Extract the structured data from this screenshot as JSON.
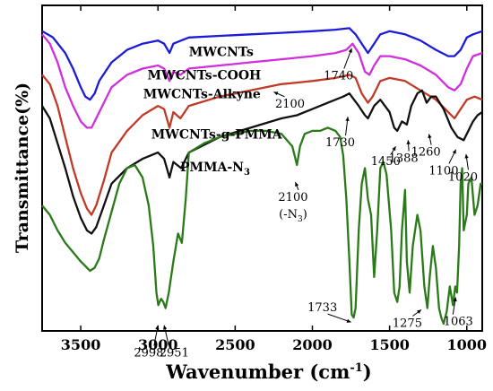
{
  "chart_data": {
    "type": "line",
    "xlabel": "Wavenumber (cm",
    "xlabel_sup": "-1",
    "xlabel_close": ")",
    "ylabel": "Transmittance(%)",
    "xlim": [
      3750,
      900
    ],
    "x_reversed": true,
    "xticks": [
      3500,
      3000,
      2500,
      2000,
      1500,
      1000
    ],
    "y_ticks_shown": false,
    "grid": false,
    "series": [
      {
        "name": "MWCNTs",
        "color": "#1c1cd8",
        "points": [
          [
            3750,
            0.94
          ],
          [
            3680,
            0.92
          ],
          [
            3600,
            0.87
          ],
          [
            3550,
            0.82
          ],
          [
            3500,
            0.76
          ],
          [
            3470,
            0.73
          ],
          [
            3440,
            0.72
          ],
          [
            3410,
            0.74
          ],
          [
            3380,
            0.78
          ],
          [
            3300,
            0.84
          ],
          [
            3200,
            0.88
          ],
          [
            3100,
            0.9
          ],
          [
            3000,
            0.91
          ],
          [
            2960,
            0.9
          ],
          [
            2925,
            0.87
          ],
          [
            2900,
            0.9
          ],
          [
            2850,
            0.91
          ],
          [
            2800,
            0.92
          ],
          [
            2600,
            0.925
          ],
          [
            2400,
            0.93
          ],
          [
            2200,
            0.935
          ],
          [
            2000,
            0.94
          ],
          [
            1850,
            0.945
          ],
          [
            1760,
            0.95
          ],
          [
            1720,
            0.93
          ],
          [
            1680,
            0.9
          ],
          [
            1640,
            0.87
          ],
          [
            1600,
            0.9
          ],
          [
            1560,
            0.93
          ],
          [
            1500,
            0.94
          ],
          [
            1400,
            0.93
          ],
          [
            1300,
            0.91
          ],
          [
            1200,
            0.88
          ],
          [
            1120,
            0.86
          ],
          [
            1080,
            0.86
          ],
          [
            1040,
            0.88
          ],
          [
            1000,
            0.92
          ],
          [
            960,
            0.93
          ],
          [
            900,
            0.94
          ]
        ]
      },
      {
        "name": "MWCNTs-COOH",
        "color": "#cf2fdc",
        "points": [
          [
            3750,
            0.93
          ],
          [
            3700,
            0.9
          ],
          [
            3650,
            0.84
          ],
          [
            3600,
            0.76
          ],
          [
            3550,
            0.7
          ],
          [
            3500,
            0.65
          ],
          [
            3460,
            0.63
          ],
          [
            3430,
            0.63
          ],
          [
            3400,
            0.66
          ],
          [
            3350,
            0.71
          ],
          [
            3300,
            0.76
          ],
          [
            3200,
            0.8
          ],
          [
            3100,
            0.82
          ],
          [
            3000,
            0.83
          ],
          [
            2960,
            0.82
          ],
          [
            2925,
            0.78
          ],
          [
            2900,
            0.81
          ],
          [
            2855,
            0.8
          ],
          [
            2800,
            0.82
          ],
          [
            2600,
            0.83
          ],
          [
            2400,
            0.84
          ],
          [
            2200,
            0.85
          ],
          [
            2000,
            0.86
          ],
          [
            1850,
            0.87
          ],
          [
            1780,
            0.88
          ],
          [
            1740,
            0.9
          ],
          [
            1700,
            0.87
          ],
          [
            1660,
            0.81
          ],
          [
            1630,
            0.8
          ],
          [
            1600,
            0.83
          ],
          [
            1560,
            0.86
          ],
          [
            1500,
            0.86
          ],
          [
            1400,
            0.85
          ],
          [
            1300,
            0.83
          ],
          [
            1200,
            0.8
          ],
          [
            1120,
            0.76
          ],
          [
            1080,
            0.75
          ],
          [
            1040,
            0.77
          ],
          [
            1000,
            0.82
          ],
          [
            960,
            0.86
          ],
          [
            900,
            0.87
          ]
        ]
      },
      {
        "name": "MWCNTs-Alkyne",
        "color": "#c03a28",
        "points": [
          [
            3750,
            0.8
          ],
          [
            3700,
            0.77
          ],
          [
            3650,
            0.7
          ],
          [
            3600,
            0.6
          ],
          [
            3550,
            0.5
          ],
          [
            3500,
            0.42
          ],
          [
            3460,
            0.37
          ],
          [
            3430,
            0.35
          ],
          [
            3400,
            0.38
          ],
          [
            3350,
            0.46
          ],
          [
            3300,
            0.55
          ],
          [
            3200,
            0.62
          ],
          [
            3100,
            0.67
          ],
          [
            3000,
            0.7
          ],
          [
            2960,
            0.69
          ],
          [
            2925,
            0.63
          ],
          [
            2900,
            0.68
          ],
          [
            2855,
            0.66
          ],
          [
            2800,
            0.7
          ],
          [
            2600,
            0.73
          ],
          [
            2400,
            0.75
          ],
          [
            2200,
            0.77
          ],
          [
            2100,
            0.775
          ],
          [
            2000,
            0.78
          ],
          [
            1850,
            0.79
          ],
          [
            1760,
            0.8
          ],
          [
            1720,
            0.79
          ],
          [
            1680,
            0.74
          ],
          [
            1640,
            0.71
          ],
          [
            1610,
            0.73
          ],
          [
            1560,
            0.78
          ],
          [
            1500,
            0.79
          ],
          [
            1400,
            0.78
          ],
          [
            1300,
            0.75
          ],
          [
            1200,
            0.72
          ],
          [
            1120,
            0.68
          ],
          [
            1080,
            0.66
          ],
          [
            1040,
            0.69
          ],
          [
            1000,
            0.72
          ],
          [
            950,
            0.73
          ],
          [
            900,
            0.72
          ]
        ]
      },
      {
        "name": "MWCNTs-g-PMMA",
        "color": "#111111",
        "points": [
          [
            3750,
            0.7
          ],
          [
            3700,
            0.66
          ],
          [
            3650,
            0.58
          ],
          [
            3600,
            0.5
          ],
          [
            3550,
            0.41
          ],
          [
            3500,
            0.34
          ],
          [
            3460,
            0.3
          ],
          [
            3430,
            0.29
          ],
          [
            3400,
            0.31
          ],
          [
            3350,
            0.38
          ],
          [
            3300,
            0.45
          ],
          [
            3200,
            0.5
          ],
          [
            3100,
            0.53
          ],
          [
            3000,
            0.55
          ],
          [
            2960,
            0.53
          ],
          [
            2925,
            0.47
          ],
          [
            2900,
            0.52
          ],
          [
            2850,
            0.5
          ],
          [
            2800,
            0.55
          ],
          [
            2600,
            0.6
          ],
          [
            2400,
            0.63
          ],
          [
            2200,
            0.66
          ],
          [
            2100,
            0.67
          ],
          [
            2000,
            0.69
          ],
          [
            1900,
            0.71
          ],
          [
            1800,
            0.73
          ],
          [
            1760,
            0.74
          ],
          [
            1730,
            0.72
          ],
          [
            1700,
            0.7
          ],
          [
            1660,
            0.67
          ],
          [
            1640,
            0.66
          ],
          [
            1600,
            0.7
          ],
          [
            1560,
            0.72
          ],
          [
            1500,
            0.68
          ],
          [
            1470,
            0.63
          ],
          [
            1450,
            0.62
          ],
          [
            1420,
            0.65
          ],
          [
            1388,
            0.64
          ],
          [
            1360,
            0.7
          ],
          [
            1320,
            0.74
          ],
          [
            1290,
            0.75
          ],
          [
            1260,
            0.71
          ],
          [
            1230,
            0.73
          ],
          [
            1200,
            0.73
          ],
          [
            1150,
            0.69
          ],
          [
            1100,
            0.63
          ],
          [
            1060,
            0.6
          ],
          [
            1020,
            0.59
          ],
          [
            990,
            0.62
          ],
          [
            960,
            0.65
          ],
          [
            930,
            0.67
          ],
          [
            900,
            0.68
          ]
        ]
      },
      {
        "name": "PMMA-N3",
        "color": "#2b7a1a",
        "points": [
          [
            3750,
            0.38
          ],
          [
            3700,
            0.35
          ],
          [
            3650,
            0.3
          ],
          [
            3600,
            0.26
          ],
          [
            3550,
            0.23
          ],
          [
            3500,
            0.2
          ],
          [
            3460,
            0.18
          ],
          [
            3440,
            0.17
          ],
          [
            3410,
            0.18
          ],
          [
            3380,
            0.21
          ],
          [
            3350,
            0.27
          ],
          [
            3300,
            0.36
          ],
          [
            3250,
            0.45
          ],
          [
            3200,
            0.5
          ],
          [
            3150,
            0.51
          ],
          [
            3100,
            0.47
          ],
          [
            3060,
            0.38
          ],
          [
            3030,
            0.25
          ],
          [
            3010,
            0.1
          ],
          [
            2998,
            0.06
          ],
          [
            2980,
            0.08
          ],
          [
            2965,
            0.07
          ],
          [
            2951,
            0.05
          ],
          [
            2930,
            0.1
          ],
          [
            2900,
            0.2
          ],
          [
            2870,
            0.29
          ],
          [
            2845,
            0.26
          ],
          [
            2820,
            0.4
          ],
          [
            2800,
            0.55
          ],
          [
            2700,
            0.58
          ],
          [
            2600,
            0.6
          ],
          [
            2500,
            0.61
          ],
          [
            2400,
            0.62
          ],
          [
            2300,
            0.62
          ],
          [
            2200,
            0.61
          ],
          [
            2130,
            0.57
          ],
          [
            2100,
            0.51
          ],
          [
            2080,
            0.57
          ],
          [
            2050,
            0.61
          ],
          [
            2000,
            0.62
          ],
          [
            1950,
            0.62
          ],
          [
            1900,
            0.63
          ],
          [
            1850,
            0.62
          ],
          [
            1820,
            0.6
          ],
          [
            1800,
            0.54
          ],
          [
            1780,
            0.4
          ],
          [
            1760,
            0.2
          ],
          [
            1745,
            0.03
          ],
          [
            1733,
            0.02
          ],
          [
            1720,
            0.05
          ],
          [
            1700,
            0.3
          ],
          [
            1680,
            0.45
          ],
          [
            1660,
            0.5
          ],
          [
            1640,
            0.4
          ],
          [
            1620,
            0.35
          ],
          [
            1600,
            0.15
          ],
          [
            1580,
            0.3
          ],
          [
            1560,
            0.5
          ],
          [
            1540,
            0.52
          ],
          [
            1520,
            0.48
          ],
          [
            1490,
            0.3
          ],
          [
            1470,
            0.1
          ],
          [
            1450,
            0.07
          ],
          [
            1435,
            0.12
          ],
          [
            1420,
            0.3
          ],
          [
            1400,
            0.43
          ],
          [
            1388,
            0.2
          ],
          [
            1370,
            0.1
          ],
          [
            1350,
            0.25
          ],
          [
            1320,
            0.35
          ],
          [
            1300,
            0.3
          ],
          [
            1275,
            0.12
          ],
          [
            1255,
            0.05
          ],
          [
            1240,
            0.15
          ],
          [
            1220,
            0.25
          ],
          [
            1200,
            0.18
          ],
          [
            1180,
            0.05
          ],
          [
            1165,
            0.02
          ],
          [
            1150,
            0.0
          ],
          [
            1130,
            0.04
          ],
          [
            1110,
            0.12
          ],
          [
            1090,
            0.06
          ],
          [
            1075,
            0.12
          ],
          [
            1063,
            0.1
          ],
          [
            1050,
            0.25
          ],
          [
            1040,
            0.45
          ],
          [
            1030,
            0.5
          ],
          [
            1020,
            0.3
          ],
          [
            1000,
            0.35
          ],
          [
            990,
            0.45
          ],
          [
            970,
            0.47
          ],
          [
            950,
            0.35
          ],
          [
            930,
            0.38
          ],
          [
            910,
            0.45
          ],
          [
            900,
            0.45
          ]
        ]
      }
    ],
    "series_labels": [
      {
        "text": "MWCNTs",
        "x": 2590,
        "y": 0.86
      },
      {
        "text": "MWCNTs-COOH",
        "x": 2700,
        "y": 0.785
      },
      {
        "text": "MWCNTs-Alkyne",
        "x": 2715,
        "y": 0.725
      },
      {
        "text": "MWCNTs-g-PMMA",
        "x": 2620,
        "y": 0.595
      },
      {
        "text": "PMMA-N",
        "sub": "3",
        "x": 2630,
        "y": 0.49
      }
    ],
    "annotations": [
      {
        "text": "1740",
        "x": 1830,
        "y": 0.785,
        "arrow_to": [
          1745,
          0.885
        ]
      },
      {
        "text": "2100",
        "x": 2145,
        "y": 0.695,
        "arrow_to": [
          2250,
          0.745
        ]
      },
      {
        "text": "1730",
        "x": 1820,
        "y": 0.57,
        "arrow_to": [
          1770,
          0.665
        ]
      },
      {
        "text": "1450",
        "x": 1525,
        "y": 0.51,
        "arrow_to": [
          1460,
          0.57
        ]
      },
      {
        "text": "1388",
        "x": 1410,
        "y": 0.52,
        "arrow_to": [
          1380,
          0.59
        ]
      },
      {
        "text": "1260",
        "x": 1265,
        "y": 0.54,
        "arrow_to": [
          1245,
          0.61
        ]
      },
      {
        "text": "1100",
        "x": 1150,
        "y": 0.48,
        "arrow_to": [
          1070,
          0.56
        ]
      },
      {
        "text": "1020",
        "x": 1025,
        "y": 0.46,
        "arrow_to": [
          1005,
          0.545
        ]
      },
      {
        "text": "2100",
        "x": 2125,
        "y": 0.395,
        "arrow_to": [
          2110,
          0.455
        ]
      },
      {
        "text": "(-N",
        "sub": "3",
        "close": ")",
        "x": 2125,
        "y": 0.34
      },
      {
        "text": "2998",
        "x": 3060,
        "y": -0.105,
        "arrow_to": [
          3000,
          -0.005
        ]
      },
      {
        "text": "2951",
        "x": 2895,
        "y": -0.105,
        "arrow_to": [
          2960,
          -0.005
        ]
      },
      {
        "text": "1733",
        "x": 1935,
        "y": 0.04,
        "arrow_to": [
          1750,
          0.005
        ]
      },
      {
        "text": "1275",
        "x": 1385,
        "y": -0.01,
        "arrow_to": [
          1295,
          0.045
        ]
      },
      {
        "text": "1063",
        "x": 1055,
        "y": -0.005,
        "arrow_to": [
          1072,
          0.085
        ]
      }
    ]
  }
}
